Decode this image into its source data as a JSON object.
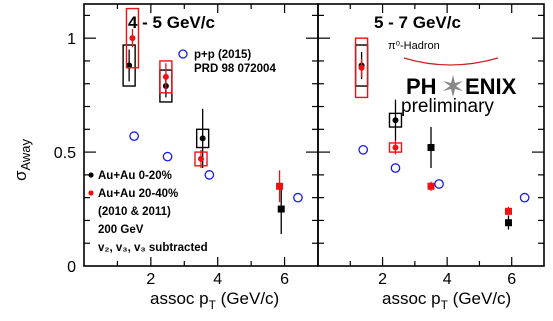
{
  "chart_data": {
    "type": "scatter",
    "ylabel": "σ_Away",
    "colors": {
      "auau_0_20": "#000000",
      "auau_20_40": "#ee1111",
      "pp": "#1a1aee"
    },
    "legend": {
      "pp": "p+p (2015)",
      "pp_ref": "PRD 98 072004",
      "auau_0_20": "Au+Au 0-20%",
      "auau_20_40": "Au+Au 20-40%",
      "years": "(2010 & 2011)",
      "energy": "200 GeV",
      "subtracted": "v₂, v₃, v₃ subtracted"
    },
    "panels": [
      {
        "title": "4 - 5 GeV/c",
        "xlabel": "assoc p_T (GeV/c)",
        "xlim": [
          0,
          7
        ],
        "ylim": [
          0,
          1.15
        ],
        "xticks": [
          2,
          4,
          6
        ],
        "yticks": [
          0,
          0.5,
          1
        ],
        "ytick_labels": [
          "0",
          "0.5",
          "1"
        ],
        "series": [
          {
            "key": "pp",
            "points": [
              {
                "x": 1.5,
                "y": 0.57
              },
              {
                "x": 2.5,
                "y": 0.48
              },
              {
                "x": 3.75,
                "y": 0.4
              },
              {
                "x": 6.4,
                "y": 0.3
              }
            ]
          },
          {
            "key": "auau_0_20",
            "points": [
              {
                "x": 1.35,
                "y": 0.88,
                "err": 0.07,
                "sys": 0.09
              },
              {
                "x": 2.45,
                "y": 0.79,
                "err": 0.05,
                "sys": 0.07
              },
              {
                "x": 3.55,
                "y": 0.56,
                "err": 0.13,
                "sys": 0.04
              },
              {
                "x": 5.9,
                "y": 0.25,
                "err": 0.11,
                "sys": 0
              }
            ]
          },
          {
            "key": "auau_20_40",
            "points": [
              {
                "x": 1.45,
                "y": 1.0,
                "err": 0.04,
                "sys": 0.13
              },
              {
                "x": 2.45,
                "y": 0.83,
                "err": 0.06,
                "sys": 0.07
              },
              {
                "x": 3.5,
                "y": 0.47,
                "err": 0.04,
                "sys": 0.03
              },
              {
                "x": 5.85,
                "y": 0.35,
                "err": 0.07,
                "sys": 0
              }
            ]
          }
        ]
      },
      {
        "title": "5 - 7 GeV/c",
        "subtitle": "π⁰-Hadron",
        "xlabel": "assoc p_T (GeV/c)",
        "xlim": [
          0,
          7
        ],
        "ylim": [
          0,
          1.15
        ],
        "xticks": [
          2,
          4,
          6
        ],
        "yticks": [
          0,
          0.5,
          1
        ],
        "ytick_labels": [],
        "series": [
          {
            "key": "pp",
            "points": [
              {
                "x": 1.4,
                "y": 0.51
              },
              {
                "x": 2.4,
                "y": 0.43
              },
              {
                "x": 3.75,
                "y": 0.36
              },
              {
                "x": 6.4,
                "y": 0.3
              }
            ]
          },
          {
            "key": "auau_0_20",
            "points": [
              {
                "x": 1.35,
                "y": 0.88,
                "err": 0.06,
                "sys": 0.09
              },
              {
                "x": 2.4,
                "y": 0.64,
                "err": 0.09,
                "sys": 0.03
              },
              {
                "x": 3.5,
                "y": 0.52,
                "err": 0.09,
                "sys": 0
              },
              {
                "x": 5.9,
                "y": 0.19,
                "err": 0.03,
                "sys": 0
              }
            ]
          },
          {
            "key": "auau_20_40",
            "points": [
              {
                "x": 1.35,
                "y": 0.87,
                "err": 0.04,
                "sys": 0.13
              },
              {
                "x": 2.4,
                "y": 0.52,
                "err": 0.03,
                "sys": 0.02
              },
              {
                "x": 3.5,
                "y": 0.35,
                "err": 0.02,
                "sys": 0
              },
              {
                "x": 5.9,
                "y": 0.24,
                "err": 0.02,
                "sys": 0
              }
            ]
          }
        ]
      }
    ],
    "logo": {
      "left": "PH",
      "right": "ENIX",
      "sub": "preliminary"
    }
  }
}
